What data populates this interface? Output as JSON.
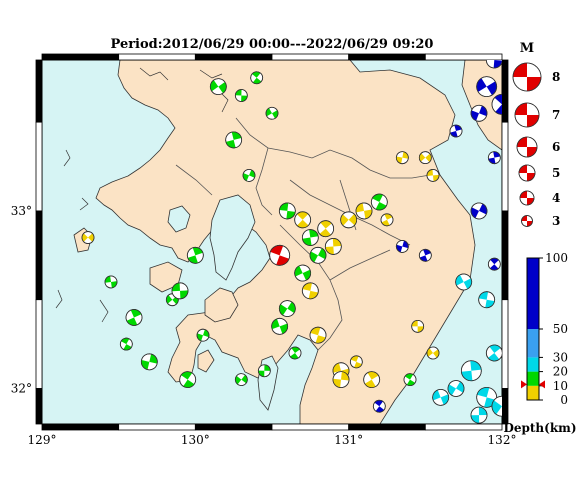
{
  "title": "Period:2012/06/29 00:00---2022/06/29 09:20",
  "map": {
    "lon_ticks": [
      "129°",
      "130°",
      "131°",
      "132°"
    ],
    "lat_ticks": [
      "33°",
      "32°"
    ],
    "colors": {
      "sea": "#d6f4f4",
      "land": "#fbe3c5",
      "coast": "#333333",
      "border": "#555555"
    }
  },
  "magnitude_legend": {
    "header": "M",
    "items": [
      "8",
      "7",
      "6",
      "5",
      "4",
      "3"
    ]
  },
  "depth_legend": {
    "labels": [
      "100",
      "50",
      "30",
      "20",
      "10",
      "0"
    ],
    "title": "Depth(km)",
    "band_colors": [
      "#f0d000",
      "#00d800",
      "#00d8e8",
      "#3aa0f0",
      "#0000c8"
    ]
  },
  "mechanisms": [
    {
      "lon": 129.3,
      "lat": 32.85,
      "depth": "shallow",
      "size": "s"
    },
    {
      "lon": 129.45,
      "lat": 32.6,
      "depth": "mid",
      "size": "s"
    },
    {
      "lon": 129.55,
      "lat": 32.25,
      "depth": "mid",
      "size": "s"
    },
    {
      "lon": 129.6,
      "lat": 32.4,
      "depth": "mid",
      "size": "m"
    },
    {
      "lon": 129.7,
      "lat": 32.15,
      "depth": "mid",
      "size": "m"
    },
    {
      "lon": 129.85,
      "lat": 32.5,
      "depth": "mid",
      "size": "s"
    },
    {
      "lon": 129.9,
      "lat": 32.55,
      "depth": "mid",
      "size": "m"
    },
    {
      "lon": 129.95,
      "lat": 32.05,
      "depth": "mid",
      "size": "m"
    },
    {
      "lon": 130.0,
      "lat": 32.75,
      "depth": "mid",
      "size": "m"
    },
    {
      "lon": 130.05,
      "lat": 32.3,
      "depth": "mid",
      "size": "s"
    },
    {
      "lon": 130.15,
      "lat": 33.7,
      "depth": "mid",
      "size": "m"
    },
    {
      "lon": 130.3,
      "lat": 33.65,
      "depth": "mid",
      "size": "s"
    },
    {
      "lon": 130.4,
      "lat": 33.75,
      "depth": "mid",
      "size": "s"
    },
    {
      "lon": 130.25,
      "lat": 33.4,
      "depth": "mid",
      "size": "m"
    },
    {
      "lon": 130.35,
      "lat": 33.2,
      "depth": "mid",
      "size": "s"
    },
    {
      "lon": 130.5,
      "lat": 33.55,
      "depth": "mid",
      "size": "s"
    },
    {
      "lon": 130.6,
      "lat": 33.0,
      "depth": "mid",
      "size": "m"
    },
    {
      "lon": 130.7,
      "lat": 32.95,
      "depth": "shallow",
      "size": "m"
    },
    {
      "lon": 130.75,
      "lat": 32.85,
      "depth": "mid",
      "size": "m"
    },
    {
      "lon": 130.8,
      "lat": 32.75,
      "depth": "mid",
      "size": "m"
    },
    {
      "lon": 130.7,
      "lat": 32.65,
      "depth": "mid",
      "size": "m"
    },
    {
      "lon": 130.75,
      "lat": 32.55,
      "depth": "shallow",
      "size": "m"
    },
    {
      "lon": 130.85,
      "lat": 32.9,
      "depth": "shallow",
      "size": "m"
    },
    {
      "lon": 130.9,
      "lat": 32.8,
      "depth": "shallow",
      "size": "m"
    },
    {
      "lon": 130.6,
      "lat": 32.45,
      "depth": "mid",
      "size": "m"
    },
    {
      "lon": 130.55,
      "lat": 32.35,
      "depth": "mid",
      "size": "m"
    },
    {
      "lon": 130.8,
      "lat": 32.3,
      "depth": "shallow",
      "size": "m"
    },
    {
      "lon": 130.65,
      "lat": 32.2,
      "depth": "mid",
      "size": "s"
    },
    {
      "lon": 130.45,
      "lat": 32.1,
      "depth": "mid",
      "size": "s"
    },
    {
      "lon": 130.3,
      "lat": 32.05,
      "depth": "mid",
      "size": "s"
    },
    {
      "lon": 130.95,
      "lat": 32.1,
      "depth": "shallow",
      "size": "m"
    },
    {
      "lon": 131.05,
      "lat": 32.15,
      "depth": "shallow",
      "size": "s"
    },
    {
      "lon": 131.15,
      "lat": 32.05,
      "depth": "shallow",
      "size": "m"
    },
    {
      "lon": 130.95,
      "lat": 32.05,
      "depth": "shallow",
      "size": "m"
    },
    {
      "lon": 131.0,
      "lat": 32.95,
      "depth": "shallow",
      "size": "m"
    },
    {
      "lon": 131.1,
      "lat": 33.0,
      "depth": "shallow",
      "size": "m"
    },
    {
      "lon": 131.2,
      "lat": 33.05,
      "depth": "mid",
      "size": "m"
    },
    {
      "lon": 131.25,
      "lat": 32.95,
      "depth": "shallow",
      "size": "s"
    },
    {
      "lon": 131.35,
      "lat": 33.3,
      "depth": "shallow",
      "size": "s"
    },
    {
      "lon": 131.5,
      "lat": 33.3,
      "depth": "shallow",
      "size": "s"
    },
    {
      "lon": 131.55,
      "lat": 33.2,
      "depth": "shallow",
      "size": "s"
    },
    {
      "lon": 131.4,
      "lat": 32.05,
      "depth": "mid",
      "size": "s"
    },
    {
      "lon": 131.5,
      "lat": 32.75,
      "depth": "deep",
      "size": "s"
    },
    {
      "lon": 131.35,
      "lat": 32.8,
      "depth": "deep",
      "size": "s"
    },
    {
      "lon": 131.55,
      "lat": 32.2,
      "depth": "shallow",
      "size": "s"
    },
    {
      "lon": 131.45,
      "lat": 32.35,
      "depth": "shallow",
      "size": "s"
    },
    {
      "lon": 131.2,
      "lat": 31.9,
      "depth": "deep",
      "size": "s"
    },
    {
      "lon": 131.7,
      "lat": 33.45,
      "depth": "deep",
      "size": "s"
    },
    {
      "lon": 131.85,
      "lat": 33.55,
      "depth": "deep",
      "size": "m"
    },
    {
      "lon": 131.9,
      "lat": 33.7,
      "depth": "deep",
      "size": "l"
    },
    {
      "lon": 131.95,
      "lat": 33.85,
      "depth": "deep",
      "size": "m"
    },
    {
      "lon": 132.0,
      "lat": 33.6,
      "depth": "deep",
      "size": "l"
    },
    {
      "lon": 131.95,
      "lat": 33.3,
      "depth": "deep",
      "size": "s"
    },
    {
      "lon": 131.85,
      "lat": 33.0,
      "depth": "deep",
      "size": "m"
    },
    {
      "lon": 131.75,
      "lat": 32.6,
      "depth": "mid30",
      "size": "m"
    },
    {
      "lon": 131.9,
      "lat": 32.5,
      "depth": "mid30",
      "size": "m"
    },
    {
      "lon": 131.95,
      "lat": 32.7,
      "depth": "deep",
      "size": "s"
    },
    {
      "lon": 131.8,
      "lat": 32.1,
      "depth": "mid30",
      "size": "l"
    },
    {
      "lon": 131.7,
      "lat": 32.0,
      "depth": "mid30",
      "size": "m"
    },
    {
      "lon": 131.6,
      "lat": 31.95,
      "depth": "mid30",
      "size": "m"
    },
    {
      "lon": 131.9,
      "lat": 31.95,
      "depth": "mid30",
      "size": "l"
    },
    {
      "lon": 131.95,
      "lat": 32.2,
      "depth": "mid30",
      "size": "m"
    },
    {
      "lon": 131.85,
      "lat": 31.85,
      "depth": "mid30",
      "size": "m"
    },
    {
      "lon": 132.0,
      "lat": 31.9,
      "depth": "mid30",
      "size": "l"
    }
  ],
  "mainshock": {
    "lon": 130.55,
    "lat": 32.75,
    "depth": "shallow",
    "size": "l"
  }
}
